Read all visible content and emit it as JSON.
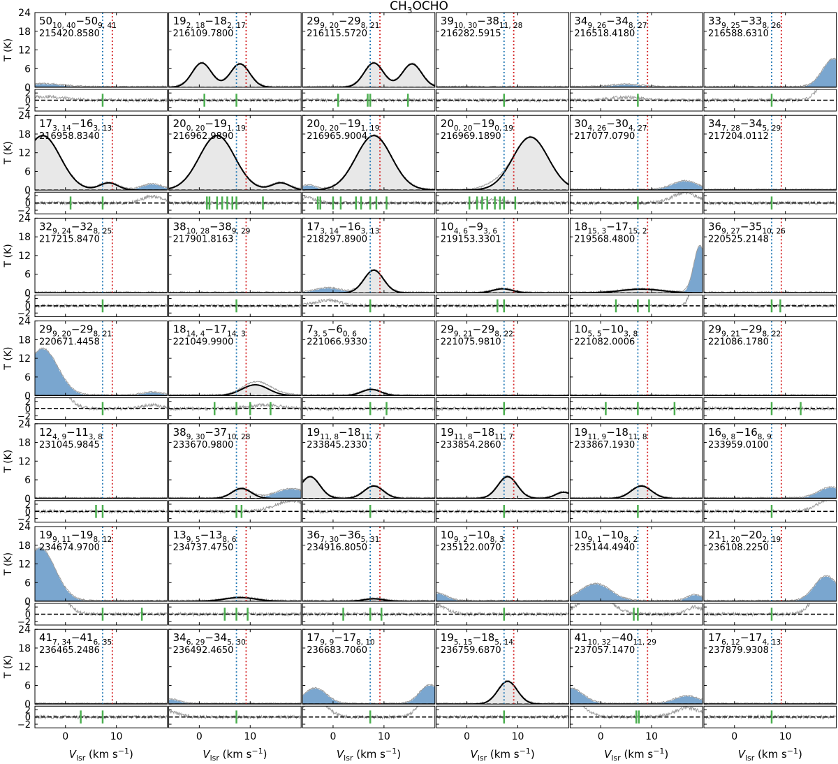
{
  "chart_data": {
    "type": "line",
    "title": "CH",
    "title_sub": "3",
    "title_rest": "OCHO",
    "xlabel": "V",
    "xlabel_sub": "lsr",
    "xlabel_unit": " (km s",
    "xlabel_sup": "−1",
    "xlabel_end": ")",
    "ylabel": "T (K)",
    "xlim": [
      -6,
      20
    ],
    "ylim": [
      0,
      24
    ],
    "resid_ylim": [
      -3,
      3
    ],
    "xticks": [
      0,
      10
    ],
    "yticks": [
      0,
      6,
      12,
      18,
      24
    ],
    "resid_yticks": [
      -2,
      0,
      2
    ],
    "v_blue": 7.3,
    "v_red": 9.2,
    "colors": {
      "model": "#000000",
      "fill": "#e8e8e8",
      "blend": "#7aa6cf",
      "data": "#9a9a9a",
      "marker": "#4caf50",
      "blue": "#1f77b4",
      "red": "#d62728"
    },
    "grid": false,
    "legend": "none",
    "panels": [
      {
        "q": "50",
        "qs": "10, 40",
        "q2": "50",
        "q2s": "9, 41",
        "freq": "215420.8580",
        "blends": [
          {
            "c": -4,
            "w": 3.5,
            "a": 1.0
          }
        ],
        "markers": [
          7.3
        ]
      },
      {
        "q": "19",
        "qs": "2, 18",
        "q2": "18",
        "q2s": "2, 17",
        "freq": "216109.7800",
        "lines": [
          {
            "c": 0.5,
            "w": 1.9,
            "a": 7.8
          },
          {
            "c": 8.0,
            "w": 1.9,
            "a": 7.5
          }
        ],
        "markers": [
          1.0,
          7.3
        ]
      },
      {
        "q": "29",
        "qs": "9, 20",
        "q2": "29",
        "q2s": "8, 21",
        "freq": "216115.5720",
        "lines": [
          {
            "c": 8.0,
            "w": 1.9,
            "a": 7.8
          },
          {
            "c": 15.5,
            "w": 1.9,
            "a": 7.5
          }
        ],
        "markers": [
          1.0,
          6.8,
          7.3,
          14.7
        ]
      },
      {
        "q": "39",
        "qs": "10, 30",
        "q2": "38",
        "q2s": "11, 28",
        "freq": "216282.5915",
        "markers": [
          7.3
        ]
      },
      {
        "q": "34",
        "qs": "9, 26",
        "q2": "34",
        "q2s": "8, 27",
        "freq": "216518.4180",
        "blends": [
          {
            "c": 5,
            "w": 3,
            "a": 0.8
          }
        ],
        "markers": [
          7.3
        ]
      },
      {
        "q": "33",
        "qs": "9, 25",
        "q2": "33",
        "q2s": "8, 26",
        "freq": "216588.6310",
        "blends": [
          {
            "c": 19.5,
            "w": 2.2,
            "a": 9.0
          }
        ],
        "markers": [
          7.3
        ]
      },
      {
        "q": "17",
        "qs": "3, 14",
        "q2": "16",
        "q2s": "3, 13",
        "freq": "216958.8340",
        "lines": [
          {
            "c": -4.5,
            "w": 3.5,
            "a": 17.5
          },
          {
            "c": 8.5,
            "w": 1.8,
            "a": 2.3
          }
        ],
        "blends": [
          {
            "c": 17,
            "w": 2,
            "a": 1.8
          }
        ],
        "markers": [
          1.0,
          7.3
        ]
      },
      {
        "q": "20",
        "qs": "0, 20",
        "q2": "19",
        "q2s": "1, 19",
        "freq": "216962.9890",
        "lines": [
          {
            "c": 3.5,
            "w": 3.5,
            "a": 17.5
          },
          {
            "c": 16.0,
            "w": 1.8,
            "a": 2.3
          }
        ],
        "markers": [
          1.5,
          2.0,
          3.5,
          4.5,
          5.5,
          6.5,
          7.3,
          12.5
        ]
      },
      {
        "q": "20",
        "qs": "0, 20",
        "q2": "19",
        "q2s": "1, 19",
        "freq": "216965.9004",
        "lines": [
          {
            "c": 8.0,
            "w": 3.5,
            "a": 17.5
          }
        ],
        "blends": [
          {
            "c": -5,
            "w": 1.5,
            "a": 1.5
          }
        ],
        "markers": [
          -3.0,
          -2.5,
          0.0,
          1.5,
          4.5,
          5.5,
          7.3,
          8.5,
          10.5
        ]
      },
      {
        "q": "20",
        "qs": "0, 20",
        "q2": "19",
        "q2s": "0, 19",
        "freq": "216969.1890",
        "lines": [
          {
            "c": 12.5,
            "w": 3.5,
            "a": 17.0
          }
        ],
        "blends": [
          {
            "c": 5,
            "w": 2,
            "a": 1.0
          }
        ],
        "markers": [
          0.5,
          2.0,
          3.0,
          4.0,
          5.5,
          6.5,
          7.3,
          9.5
        ]
      },
      {
        "q": "30",
        "qs": "4, 26",
        "q2": "30",
        "q2s": "4, 27",
        "freq": "217077.0790",
        "blends": [
          {
            "c": 16.5,
            "w": 2.5,
            "a": 2.8
          }
        ],
        "markers": [
          7.3
        ]
      },
      {
        "q": "34",
        "qs": "7, 28",
        "q2": "34",
        "q2s": "5, 29",
        "freq": "217204.0112",
        "markers": [
          7.3
        ]
      },
      {
        "q": "32",
        "qs": "9, 24",
        "q2": "32",
        "q2s": "8, 25",
        "freq": "217215.8470",
        "markers": [
          7.3
        ]
      },
      {
        "q": "38",
        "qs": "10, 28",
        "q2": "38",
        "q2s": "9, 29",
        "freq": "217901.8163",
        "markers": [
          7.3
        ]
      },
      {
        "q": "17",
        "qs": "3, 14",
        "q2": "16",
        "q2s": "3, 13",
        "freq": "218297.8900",
        "lines": [
          {
            "c": 8.0,
            "w": 1.9,
            "a": 7.3
          }
        ],
        "blends": [
          {
            "c": -1,
            "w": 2.5,
            "a": 1.5
          }
        ],
        "markers": [
          7.3
        ]
      },
      {
        "q": "10",
        "qs": "4, 6",
        "q2": "9",
        "q2s": "3, 6",
        "freq": "219153.3301",
        "lines": [
          {
            "c": 7.0,
            "w": 1.9,
            "a": 1.3
          }
        ],
        "markers": [
          6.0,
          7.3
        ]
      },
      {
        "q": "18",
        "qs": "15, 3",
        "q2": "17",
        "q2s": "15, 2",
        "freq": "219568.4800",
        "lines": [
          {
            "c": 8.0,
            "w": 4.0,
            "a": 1.2
          }
        ],
        "blends": [
          {
            "c": 19.5,
            "w": 1.2,
            "a": 15.0
          }
        ],
        "markers": [
          3.0,
          7.3,
          9.5
        ]
      },
      {
        "q": "36",
        "qs": "9, 27",
        "q2": "35",
        "q2s": "10, 26",
        "freq": "220525.2148",
        "markers": [
          7.3,
          9.0
        ]
      },
      {
        "q": "29",
        "qs": "9, 20",
        "q2": "29",
        "q2s": "8, 21",
        "freq": "220671.4458",
        "blends": [
          {
            "c": -4.5,
            "w": 3,
            "a": 15.0
          },
          {
            "c": 17,
            "w": 2,
            "a": 1.0
          }
        ],
        "markers": [
          7.3
        ]
      },
      {
        "q": "18",
        "qs": "14, 4",
        "q2": "17",
        "q2s": "14, 3",
        "freq": "221049.9900",
        "lines": [
          {
            "c": 11.0,
            "w": 2.6,
            "a": 3.5
          }
        ],
        "blends": [
          {
            "c": 13,
            "w": 3,
            "a": 1.0
          }
        ],
        "markers": [
          3.0,
          7.3,
          10.0,
          14.0
        ]
      },
      {
        "q": "7",
        "qs": "3, 5",
        "q2": "6",
        "q2s": "0, 6",
        "freq": "221066.9330",
        "lines": [
          {
            "c": 7.5,
            "w": 1.9,
            "a": 2.0
          }
        ],
        "markers": [
          7.3,
          10.5
        ]
      },
      {
        "q": "29",
        "qs": "9, 21",
        "q2": "29",
        "q2s": "8, 22",
        "freq": "221075.9810",
        "markers": [
          7.3
        ]
      },
      {
        "q": "10",
        "qs": "5, 5",
        "q2": "10",
        "q2s": "3, 8",
        "freq": "221082.0006",
        "markers": [
          1.0,
          7.3,
          14.5
        ]
      },
      {
        "q": "29",
        "qs": "9, 21",
        "q2": "29",
        "q2s": "8, 22",
        "freq": "221086.1780",
        "markers": [
          7.3,
          13.0
        ]
      },
      {
        "q": "12",
        "qs": "4, 9",
        "q2": "11",
        "q2s": "3, 8",
        "freq": "231045.9845",
        "markers": [
          6.0,
          7.3
        ]
      },
      {
        "q": "38",
        "qs": "9, 30",
        "q2": "37",
        "q2s": "10, 28",
        "freq": "233670.9800",
        "lines": [
          {
            "c": 8.3,
            "w": 1.9,
            "a": 3.2
          }
        ],
        "blends": [
          {
            "c": 18,
            "w": 3,
            "a": 3.0
          }
        ],
        "markers": [
          7.3,
          8.3
        ]
      },
      {
        "q": "19",
        "qs": "11, 8",
        "q2": "18",
        "q2s": "11, 7",
        "freq": "233845.2330",
        "lines": [
          {
            "c": -4.5,
            "w": 1.9,
            "a": 7.0
          },
          {
            "c": 8.0,
            "w": 1.9,
            "a": 4.0
          }
        ],
        "markers": [
          7.3
        ]
      },
      {
        "q": "19",
        "qs": "11, 8",
        "q2": "18",
        "q2s": "11, 7",
        "freq": "233854.2860",
        "lines": [
          {
            "c": 8.0,
            "w": 1.9,
            "a": 7.0
          },
          {
            "c": 19.0,
            "w": 1.6,
            "a": 2.0
          }
        ],
        "markers": [
          7.3
        ]
      },
      {
        "q": "19",
        "qs": "11, 9",
        "q2": "18",
        "q2s": "11, 8",
        "freq": "233867.1930",
        "lines": [
          {
            "c": 8.0,
            "w": 2.0,
            "a": 4.0
          }
        ],
        "markers": [
          7.3
        ]
      },
      {
        "q": "16",
        "qs": "9, 8",
        "q2": "16",
        "q2s": "8, 9",
        "freq": "233959.0100",
        "blends": [
          {
            "c": 19,
            "w": 2.5,
            "a": 3.5
          }
        ],
        "markers": [
          7.3
        ]
      },
      {
        "q": "19",
        "qs": "9, 11",
        "q2": "19",
        "q2s": "8, 12",
        "freq": "234674.9700",
        "blends": [
          {
            "c": -5,
            "w": 3,
            "a": 17.0
          }
        ],
        "markers": [
          7.3,
          15.0
        ]
      },
      {
        "q": "13",
        "qs": "9, 5",
        "q2": "13",
        "q2s": "8, 6",
        "freq": "234737.4750",
        "lines": [
          {
            "c": 8.0,
            "w": 3.0,
            "a": 1.2
          }
        ],
        "markers": [
          5.0,
          7.3,
          9.5
        ]
      },
      {
        "q": "36",
        "qs": "7, 30",
        "q2": "36",
        "q2s": "5, 31",
        "freq": "234916.8050",
        "lines": [
          {
            "c": 8.0,
            "w": 1.9,
            "a": 0.8
          }
        ],
        "markers": [
          2.0,
          7.3,
          9.5
        ]
      },
      {
        "q": "10",
        "qs": "9, 2",
        "q2": "10",
        "q2s": "8, 3",
        "freq": "235122.0070",
        "blends": [
          {
            "c": -6,
            "w": 2,
            "a": 2.5
          }
        ],
        "markers": [
          7.3
        ]
      },
      {
        "q": "10",
        "qs": "9, 1",
        "q2": "10",
        "q2s": "8, 2",
        "freq": "235144.4940",
        "blends": [
          {
            "c": -1,
            "w": 3,
            "a": 5.5
          },
          {
            "c": 18.5,
            "w": 1.5,
            "a": 2.0
          }
        ],
        "markers": [
          6.5,
          7.3
        ]
      },
      {
        "q": "21",
        "qs": "1, 20",
        "q2": "20",
        "q2s": "2, 19",
        "freq": "236108.2250",
        "blends": [
          {
            "c": 18,
            "w": 2.3,
            "a": 8.0
          }
        ],
        "markers": [
          7.3
        ]
      },
      {
        "q": "41",
        "qs": "7, 34",
        "q2": "41",
        "q2s": "6, 35",
        "freq": "236465.2486",
        "markers": [
          3.0,
          7.3
        ]
      },
      {
        "q": "34",
        "qs": "6, 29",
        "q2": "34",
        "q2s": "5, 30",
        "freq": "236492.4650",
        "blends": [
          {
            "c": -6,
            "w": 2,
            "a": 1.5
          }
        ],
        "markers": [
          7.3
        ]
      },
      {
        "q": "17",
        "qs": "9, 9",
        "q2": "17",
        "q2s": "8, 10",
        "freq": "236683.7060",
        "blends": [
          {
            "c": -3.5,
            "w": 2.2,
            "a": 5.0
          },
          {
            "c": 19,
            "w": 2,
            "a": 6.0
          }
        ],
        "markers": [
          7.3
        ]
      },
      {
        "q": "19",
        "qs": "5, 15",
        "q2": "18",
        "q2s": "5, 14",
        "freq": "236759.6870",
        "lines": [
          {
            "c": 8.0,
            "w": 1.9,
            "a": 7.3
          }
        ],
        "markers": [
          7.3
        ]
      },
      {
        "q": "41",
        "qs": "10, 32",
        "q2": "40",
        "q2s": "11, 29",
        "freq": "237057.1470",
        "blends": [
          {
            "c": -6,
            "w": 2.5,
            "a": 5.0
          },
          {
            "c": 17,
            "w": 2.5,
            "a": 2.5
          }
        ],
        "markers": [
          7.0,
          7.5
        ]
      },
      {
        "q": "17",
        "qs": "6, 12",
        "q2": "17",
        "q2s": "4, 13",
        "freq": "237879.9308",
        "markers": [
          7.3
        ]
      }
    ]
  }
}
